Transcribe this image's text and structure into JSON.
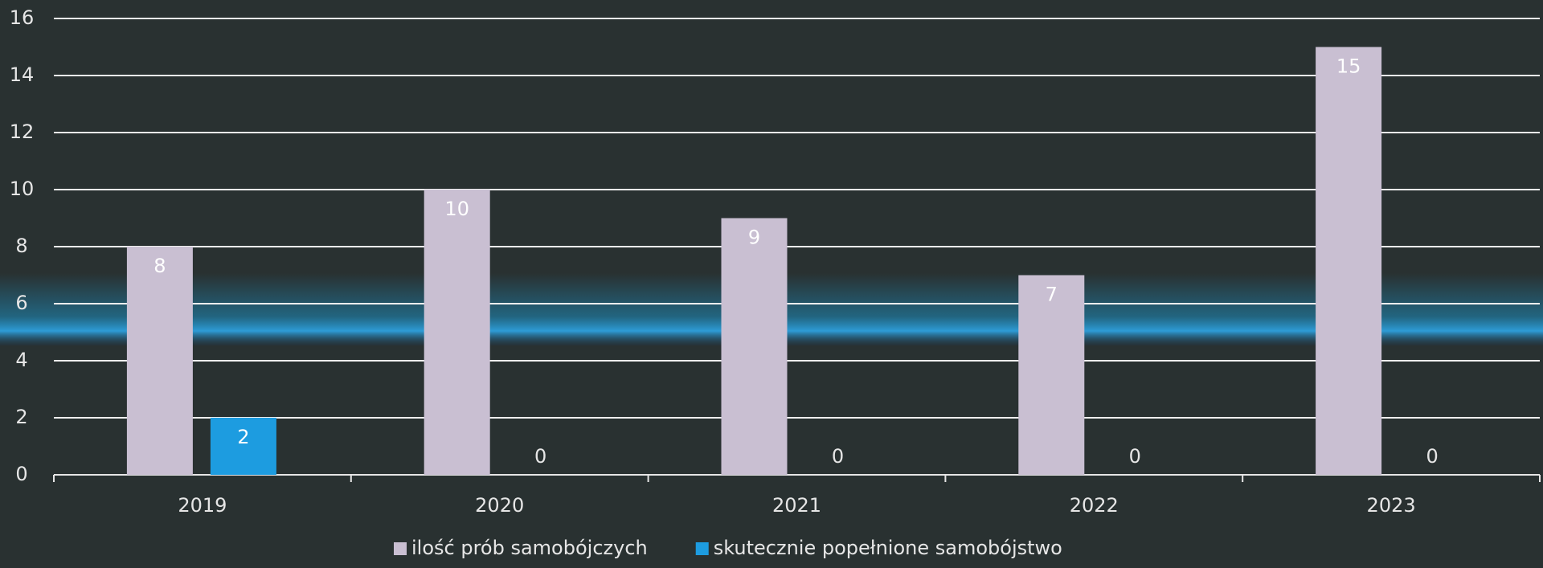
{
  "chart_data": {
    "type": "bar",
    "categories": [
      "2019",
      "2020",
      "2021",
      "2022",
      "2023"
    ],
    "series": [
      {
        "name": "ilość prób samobójczych",
        "color": "#c9bfd2",
        "values": [
          8,
          10,
          9,
          7,
          15
        ]
      },
      {
        "name": "skutecznie popełnione samobójstwo",
        "color": "#1d9ce0",
        "values": [
          2,
          0,
          0,
          0,
          0
        ]
      }
    ],
    "ylim": [
      0,
      16
    ],
    "yticks": [
      0,
      2,
      4,
      6,
      8,
      10,
      12,
      14,
      16
    ],
    "grid": true,
    "legend": "bottom"
  }
}
